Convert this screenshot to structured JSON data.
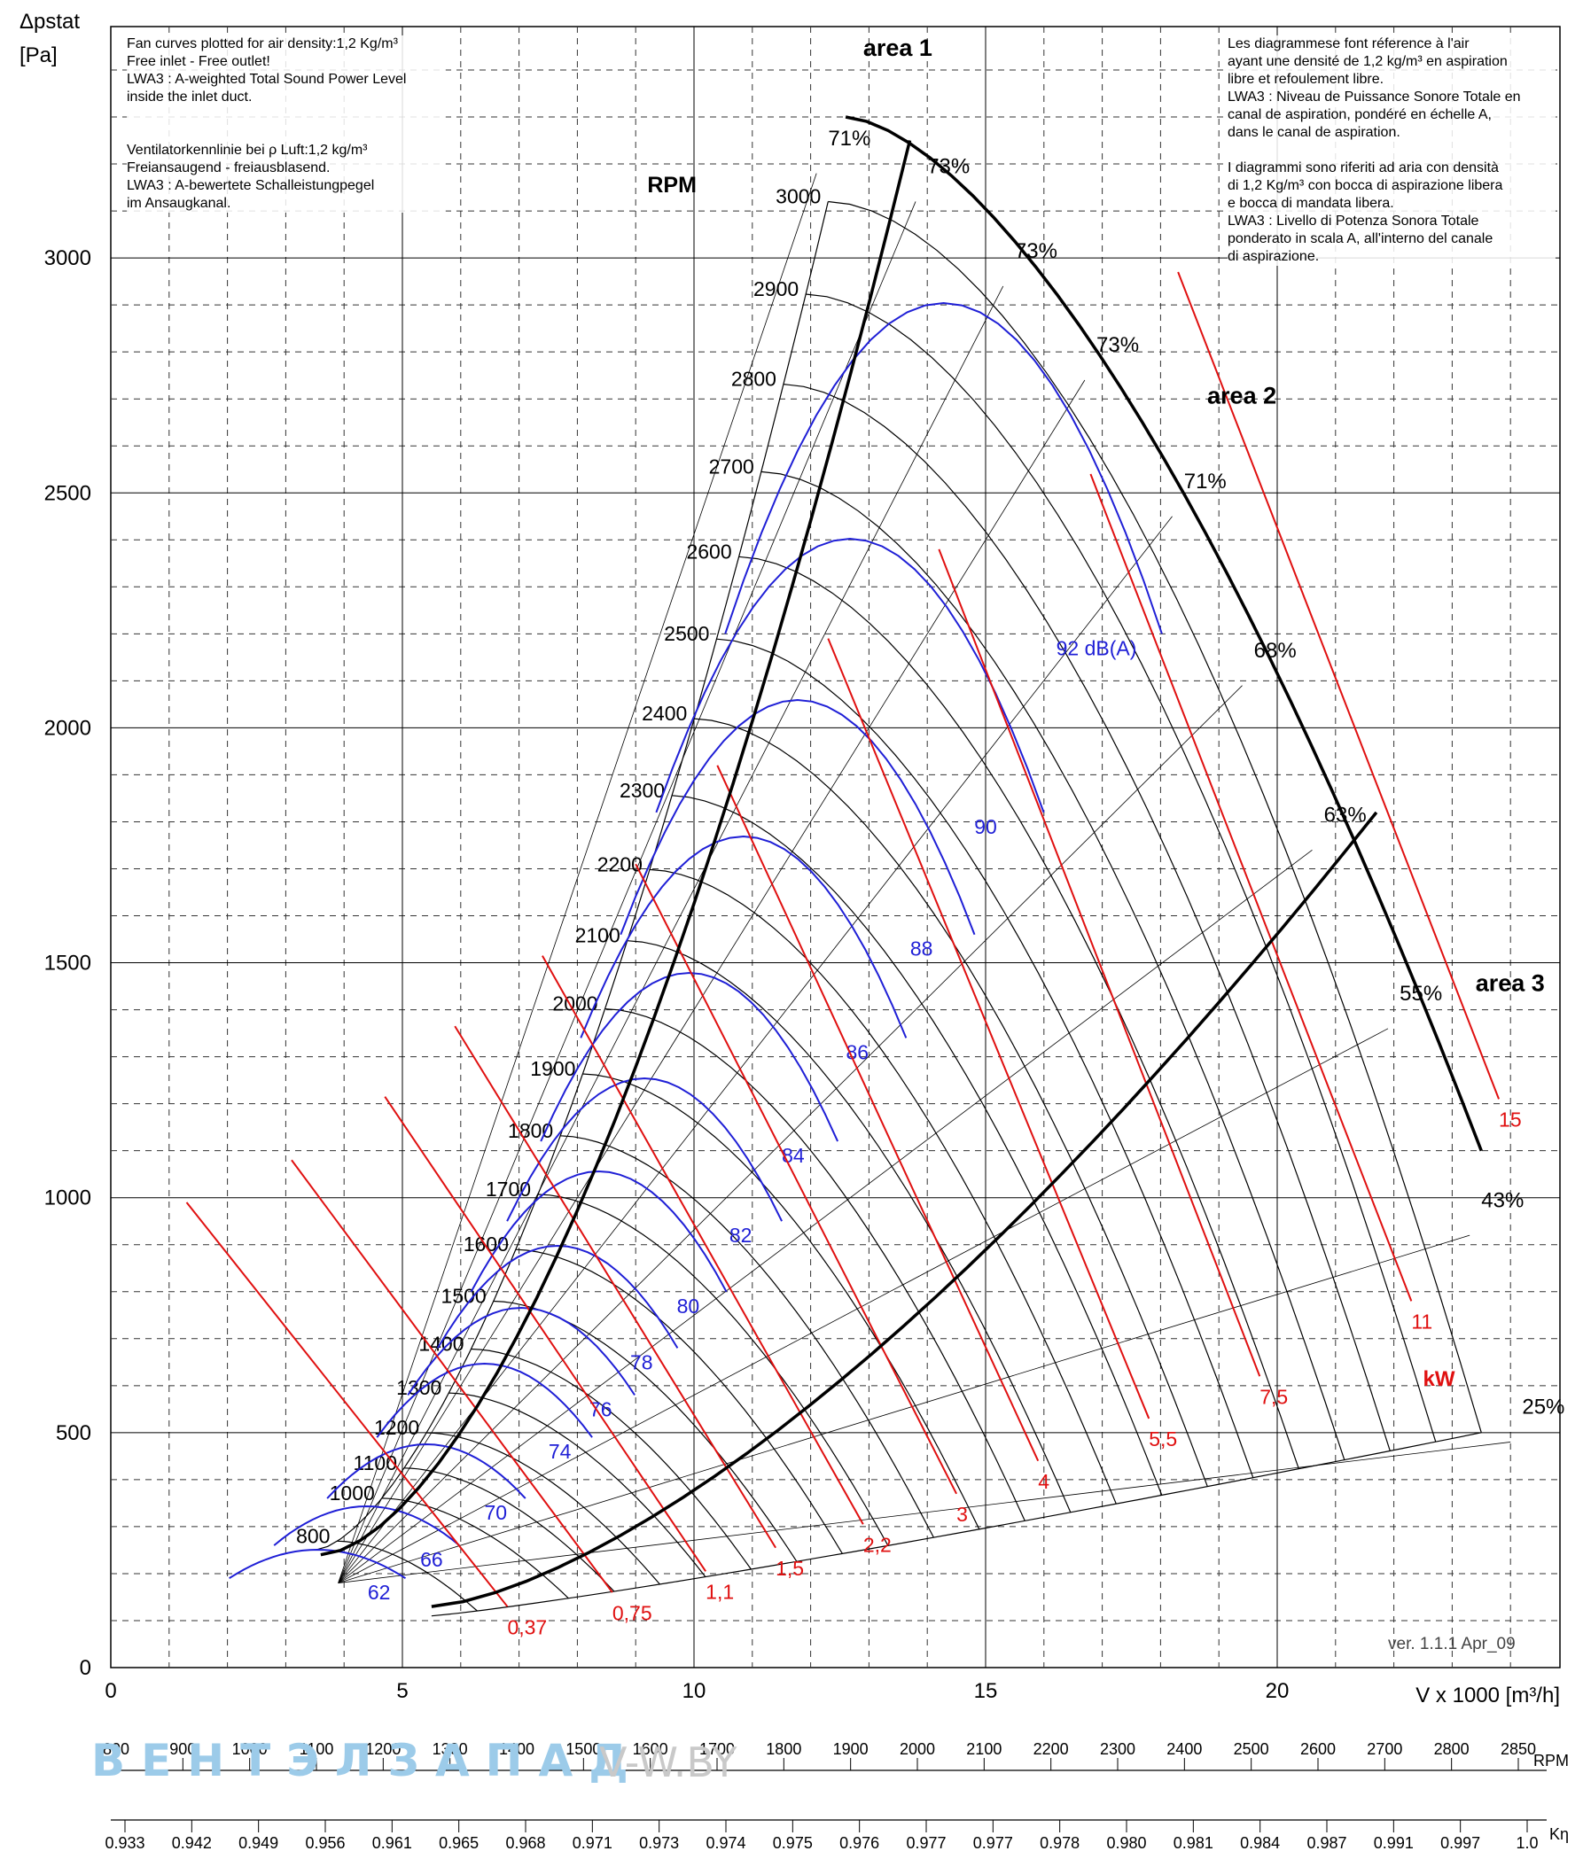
{
  "chart_data": {
    "type": "line",
    "xlabel": "V x 1000 [m³/h]",
    "ylabel_line1": "Δpstat",
    "ylabel_line2": "[Pa]",
    "xlim": [
      0,
      25
    ],
    "ylim": [
      0,
      3500
    ],
    "x_ticks": [
      "0",
      "5",
      "10",
      "15",
      "20"
    ],
    "y_ticks": [
      "0",
      "500",
      "1000",
      "1500",
      "2000",
      "2500",
      "3000"
    ],
    "grid": "solid major grid every 5 / 500 Pa, dashed minor grid every 1 / 100 Pa",
    "rpm_heading": "RPM",
    "rpm_curves": [
      {
        "rpm": 800,
        "label": "800"
      },
      {
        "rpm": 1000,
        "label": "1000"
      },
      {
        "rpm": 1100,
        "label": "1100"
      },
      {
        "rpm": 1200,
        "label": "1200"
      },
      {
        "rpm": 1300,
        "label": "1300"
      },
      {
        "rpm": 1400,
        "label": "1400"
      },
      {
        "rpm": 1500,
        "label": "1500"
      },
      {
        "rpm": 1600,
        "label": "1600"
      },
      {
        "rpm": 1700,
        "label": "1700"
      },
      {
        "rpm": 1800,
        "label": "1800"
      },
      {
        "rpm": 1900,
        "label": "1900"
      },
      {
        "rpm": 2000,
        "label": "2000"
      },
      {
        "rpm": 2100,
        "label": "2100"
      },
      {
        "rpm": 2200,
        "label": "2200"
      },
      {
        "rpm": 2300,
        "label": "2300"
      },
      {
        "rpm": 2400,
        "label": "2400"
      },
      {
        "rpm": 2500,
        "label": "2500"
      },
      {
        "rpm": 2600,
        "label": "2600"
      },
      {
        "rpm": 2700,
        "label": "2700"
      },
      {
        "rpm": 2800,
        "label": "2800"
      },
      {
        "rpm": 2900,
        "label": "2900"
      },
      {
        "rpm": 3000,
        "label": "3000"
      }
    ],
    "reference_curve": {
      "rpm": 3000,
      "x0": 12.3,
      "p0": 3120,
      "x1": 23.5,
      "p1": 500
    },
    "sound_levels_dBA": [
      {
        "label": "62",
        "x": 4.6,
        "p": 190
      },
      {
        "label": "66",
        "x": 5.5,
        "p": 260
      },
      {
        "label": "70",
        "x": 6.6,
        "p": 360
      },
      {
        "label": "74",
        "x": 7.7,
        "p": 490
      },
      {
        "label": "76",
        "x": 8.4,
        "p": 580
      },
      {
        "label": "78",
        "x": 9.1,
        "p": 680
      },
      {
        "label": "80",
        "x": 9.9,
        "p": 800
      },
      {
        "label": "82",
        "x": 10.8,
        "p": 950
      },
      {
        "label": "84",
        "x": 11.7,
        "p": 1120
      },
      {
        "label": "86",
        "x": 12.8,
        "p": 1340
      },
      {
        "label": "88",
        "x": 13.9,
        "p": 1560
      },
      {
        "label": "90",
        "x": 15.0,
        "p": 1820
      },
      {
        "label": "92 dB(A)",
        "x": 16.9,
        "p": 2200
      }
    ],
    "power_kW": [
      {
        "label": "0,37",
        "x": 6.8,
        "p": 90
      },
      {
        "label": "0,75",
        "x": 8.6,
        "p": 120
      },
      {
        "label": "1,1",
        "x": 10.2,
        "p": 165
      },
      {
        "label": "1,5",
        "x": 11.4,
        "p": 215
      },
      {
        "label": "2,2",
        "x": 12.9,
        "p": 265
      },
      {
        "label": "3",
        "x": 14.5,
        "p": 330
      },
      {
        "label": "4",
        "x": 15.9,
        "p": 400
      },
      {
        "label": "5,5",
        "x": 17.8,
        "p": 490
      },
      {
        "label": "7,5",
        "x": 19.7,
        "p": 580
      },
      {
        "label": "11",
        "x": 22.3,
        "p": 740
      },
      {
        "label": "15",
        "x": 23.8,
        "p": 1170
      }
    ],
    "power_unit": "kW",
    "efficiency_labels": [
      {
        "label": "71%",
        "x": 12.3,
        "p": 3240
      },
      {
        "label": "73%",
        "x": 14.0,
        "p": 3180
      },
      {
        "label": "73%",
        "x": 15.5,
        "p": 3000
      },
      {
        "label": "73%",
        "x": 16.9,
        "p": 2800
      },
      {
        "label": "71%",
        "x": 18.4,
        "p": 2510
      },
      {
        "label": "68%",
        "x": 19.6,
        "p": 2150
      },
      {
        "label": "63%",
        "x": 20.8,
        "p": 1800
      },
      {
        "label": "55%",
        "x": 22.1,
        "p": 1420
      },
      {
        "label": "43%",
        "x": 23.5,
        "p": 980
      },
      {
        "label": "25%",
        "x": 24.2,
        "p": 540
      }
    ],
    "areas": [
      {
        "label": "area 1",
        "x": 12.9,
        "p": 3430
      },
      {
        "label": "area 2",
        "x": 18.8,
        "p": 2690
      },
      {
        "label": "area 3",
        "x": 23.4,
        "p": 1440
      }
    ],
    "version": "ver. 1.1.1 Apr_09",
    "rpm_scale_label": "RPM",
    "rpm_scale": [
      "800",
      "900",
      "1000",
      "1100",
      "1200",
      "1300",
      "1400",
      "1500",
      "1600",
      "1700",
      "1800",
      "1900",
      "2000",
      "2100",
      "2200",
      "2300",
      "2400",
      "2500",
      "2600",
      "2700",
      "2800",
      "2850"
    ],
    "k_scale_label": "Kη",
    "k_scale": [
      "0.933",
      "0.942",
      "0.949",
      "0.956",
      "0.961",
      "0.965",
      "0.968",
      "0.971",
      "0.973",
      "0.974",
      "0.975",
      "0.976",
      "0.977",
      "0.977",
      "0.978",
      "0.980",
      "0.981",
      "0.984",
      "0.987",
      "0.991",
      "0.997",
      "1.0"
    ]
  },
  "notes": {
    "left": "Fan curves plotted for air density:1,2 Kg/m³\nFree inlet - Free outlet!\nLWA3 : A-weighted Total Sound Power Level\ninside the inlet duct.\n\n\nVentilatorkennlinie bei ρ Luft:1,2 kg/m³\nFreiansaugend - freiausblasend.\nLWA3 : A-bewertete Schalleistungpegel\nim Ansaugkanal.",
    "right": "Les diagrammese font réference à l'air\nayant une densité de 1,2 kg/m³ en aspiration\nlibre et refoulement libre.\nLWA3 : Niveau de Puissance Sonore Totale en\ncanal de aspiration, pondéré en échelle A,\ndans le canal de aspiration.\n\nI diagrammi sono riferiti ad aria con densità\ndi 1,2 Kg/m³ con bocca di aspirazione libera\ne bocca di mandata libera.\nLWA3 : Livello di Potenza Sonora Totale\nponderato in scala A, all'interno del canale\ndi aspirazione."
  },
  "watermark": {
    "brand": "ВЕНТЭЛЗАПАД",
    "site": "V-W.BY"
  },
  "colors": {
    "rpm": "#000000",
    "sound": "#1f1fd6",
    "power": "#e01010",
    "grid": "#333333",
    "watermark": "#9ccbe9"
  }
}
